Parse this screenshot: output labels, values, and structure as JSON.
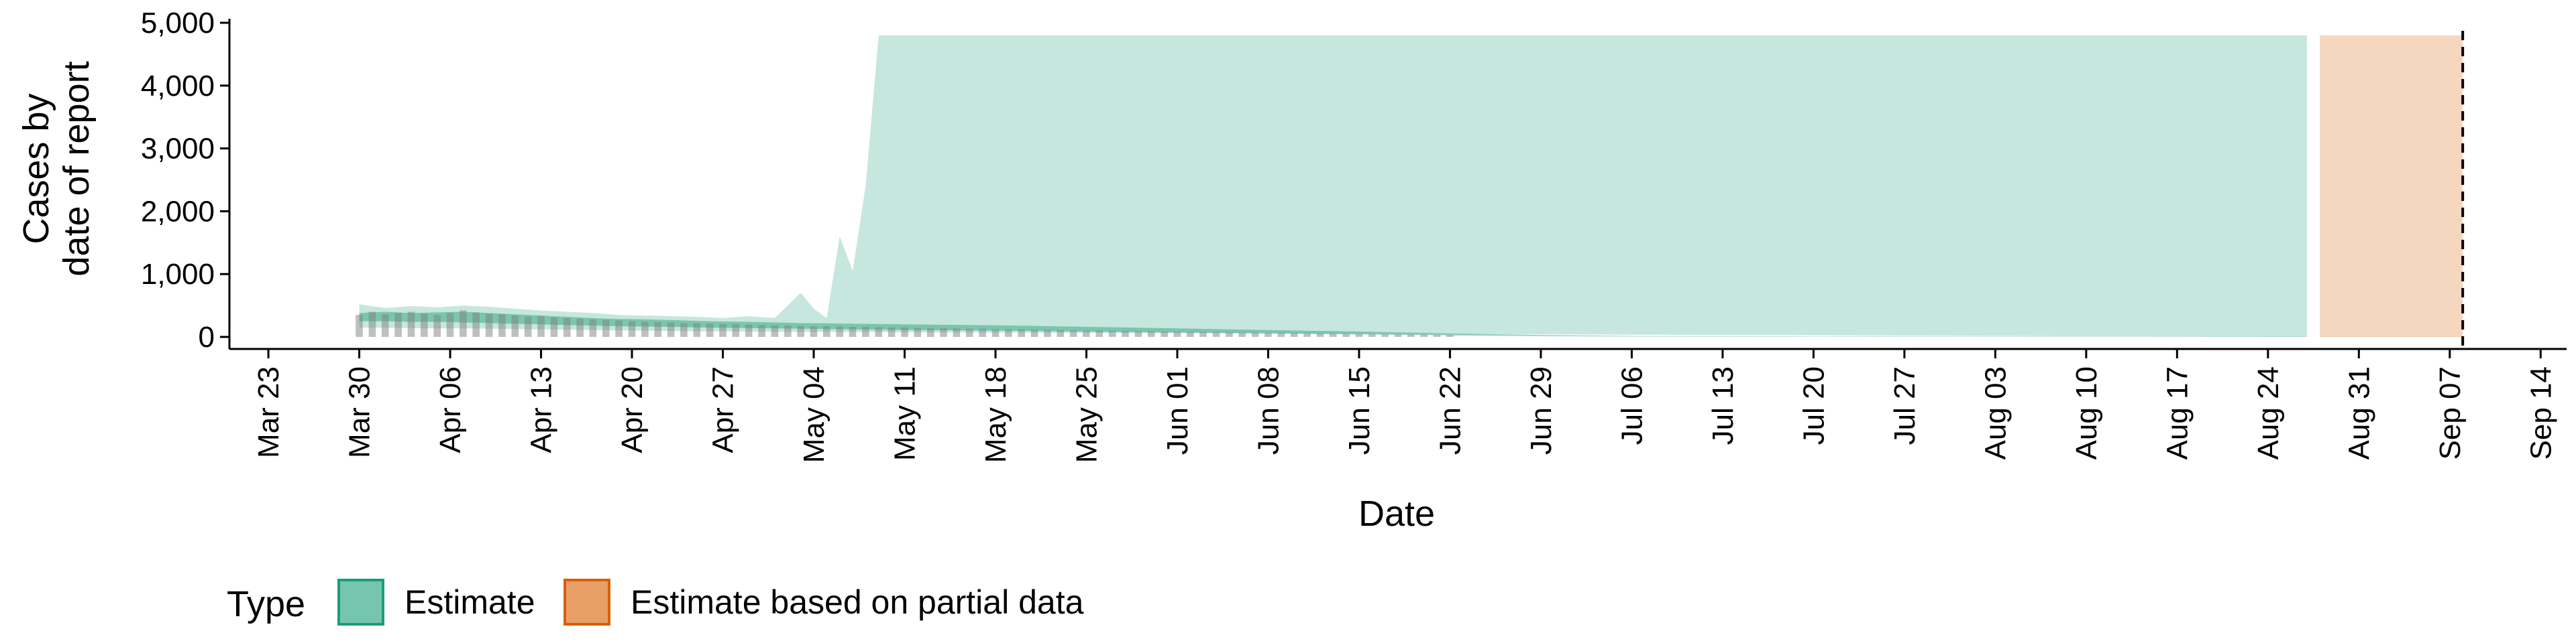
{
  "chart_data": {
    "type": "area",
    "title": "",
    "xlabel": "Date",
    "ylabel_lines": [
      "Cases by",
      "date of report"
    ],
    "x_range": [
      "2020-03-20",
      "2020-09-16"
    ],
    "ylim": [
      0,
      5000
    ],
    "y_ticks": [
      0,
      1000,
      2000,
      3000,
      4000,
      5000
    ],
    "y_tick_labels": [
      "0",
      "1,000",
      "2,000",
      "3,000",
      "4,000",
      "5,000"
    ],
    "x_ticks": [
      "2020-03-23",
      "2020-03-30",
      "2020-04-06",
      "2020-04-13",
      "2020-04-20",
      "2020-04-27",
      "2020-05-04",
      "2020-05-11",
      "2020-05-18",
      "2020-05-25",
      "2020-06-01",
      "2020-06-08",
      "2020-06-15",
      "2020-06-22",
      "2020-06-29",
      "2020-07-06",
      "2020-07-13",
      "2020-07-20",
      "2020-07-27",
      "2020-08-03",
      "2020-08-10",
      "2020-08-17",
      "2020-08-24",
      "2020-08-31",
      "2020-09-07",
      "2020-09-14"
    ],
    "x_tick_labels": [
      "Mar 23",
      "Mar 30",
      "Apr 06",
      "Apr 13",
      "Apr 20",
      "Apr 27",
      "May 04",
      "May 11",
      "May 18",
      "May 25",
      "Jun 01",
      "Jun 08",
      "Jun 15",
      "Jun 22",
      "Jun 29",
      "Jul 06",
      "Jul 13",
      "Jul 20",
      "Jul 27",
      "Aug 03",
      "Aug 10",
      "Aug 17",
      "Aug 24",
      "Aug 31",
      "Sep 07",
      "Sep 14"
    ],
    "reference_line_date": "2020-09-08",
    "grid": false,
    "legend": {
      "title": "Type",
      "position": "bottom-left",
      "entries": [
        {
          "label": "Estimate",
          "color": "#1b9e77"
        },
        {
          "label": "Estimate based on partial data",
          "color": "#d95f02"
        }
      ]
    },
    "series": [
      {
        "name": "Estimate",
        "color": "#1b9e77",
        "outer_band": [
          [
            "2020-03-30",
            150,
            520
          ],
          [
            "2020-04-01",
            145,
            460
          ],
          [
            "2020-04-03",
            140,
            490
          ],
          [
            "2020-04-05",
            135,
            470
          ],
          [
            "2020-04-07",
            135,
            500
          ],
          [
            "2020-04-09",
            130,
            480
          ],
          [
            "2020-04-11",
            125,
            450
          ],
          [
            "2020-04-13",
            120,
            420
          ],
          [
            "2020-04-15",
            115,
            400
          ],
          [
            "2020-04-17",
            110,
            380
          ],
          [
            "2020-04-19",
            105,
            350
          ],
          [
            "2020-04-21",
            100,
            340
          ],
          [
            "2020-04-23",
            95,
            330
          ],
          [
            "2020-04-25",
            90,
            320
          ],
          [
            "2020-04-27",
            88,
            300
          ],
          [
            "2020-04-29",
            85,
            330
          ],
          [
            "2020-05-01",
            82,
            300
          ],
          [
            "2020-05-03",
            80,
            700
          ],
          [
            "2020-05-04",
            80,
            450
          ],
          [
            "2020-05-05",
            80,
            300
          ],
          [
            "2020-05-06",
            80,
            1600
          ],
          [
            "2020-05-07",
            78,
            1050
          ],
          [
            "2020-05-08",
            78,
            2400
          ],
          [
            "2020-05-09",
            76,
            4800
          ],
          [
            "2020-08-27",
            0,
            4800
          ]
        ],
        "inner_band": [
          [
            "2020-03-30",
            250,
            380
          ],
          [
            "2020-04-01",
            250,
            400
          ],
          [
            "2020-04-03",
            240,
            380
          ],
          [
            "2020-04-05",
            240,
            390
          ],
          [
            "2020-04-07",
            230,
            400
          ],
          [
            "2020-04-09",
            220,
            380
          ],
          [
            "2020-04-11",
            210,
            360
          ],
          [
            "2020-04-13",
            200,
            340
          ],
          [
            "2020-04-15",
            190,
            320
          ],
          [
            "2020-04-17",
            180,
            300
          ],
          [
            "2020-04-19",
            170,
            285
          ],
          [
            "2020-04-21",
            165,
            280
          ],
          [
            "2020-04-23",
            160,
            270
          ],
          [
            "2020-04-25",
            150,
            255
          ],
          [
            "2020-04-27",
            145,
            245
          ],
          [
            "2020-04-29",
            140,
            240
          ],
          [
            "2020-05-01",
            135,
            230
          ],
          [
            "2020-05-03",
            130,
            220
          ],
          [
            "2020-05-05",
            125,
            215
          ],
          [
            "2020-05-07",
            120,
            210
          ],
          [
            "2020-05-11",
            110,
            200
          ],
          [
            "2020-05-18",
            100,
            185
          ],
          [
            "2020-05-25",
            85,
            160
          ],
          [
            "2020-06-01",
            70,
            135
          ],
          [
            "2020-06-08",
            55,
            110
          ],
          [
            "2020-06-15",
            40,
            85
          ],
          [
            "2020-06-22",
            25,
            55
          ],
          [
            "2020-06-29",
            12,
            30
          ],
          [
            "2020-07-06",
            5,
            15
          ],
          [
            "2020-07-20",
            2,
            8
          ],
          [
            "2020-08-27",
            0,
            3
          ]
        ]
      },
      {
        "name": "Estimate based on partial data",
        "color": "#d95f02",
        "outer_band": [
          [
            "2020-08-28",
            0,
            4800
          ],
          [
            "2020-09-08",
            0,
            4800
          ]
        ],
        "inner_band": [
          [
            "2020-08-28",
            0,
            3
          ],
          [
            "2020-09-08",
            0,
            3
          ]
        ]
      }
    ],
    "observed_bars": [
      [
        "2020-03-30",
        350
      ],
      [
        "2020-03-31",
        400
      ],
      [
        "2020-04-01",
        360
      ],
      [
        "2020-04-02",
        380
      ],
      [
        "2020-04-03",
        400
      ],
      [
        "2020-04-04",
        370
      ],
      [
        "2020-04-05",
        350
      ],
      [
        "2020-04-06",
        380
      ],
      [
        "2020-04-07",
        420
      ],
      [
        "2020-04-08",
        390
      ],
      [
        "2020-04-09",
        370
      ],
      [
        "2020-04-10",
        360
      ],
      [
        "2020-04-11",
        340
      ],
      [
        "2020-04-12",
        320
      ],
      [
        "2020-04-13",
        330
      ],
      [
        "2020-04-14",
        310
      ],
      [
        "2020-04-15",
        300
      ],
      [
        "2020-04-16",
        290
      ],
      [
        "2020-04-17",
        280
      ],
      [
        "2020-04-18",
        270
      ],
      [
        "2020-04-19",
        260
      ],
      [
        "2020-04-20",
        250
      ],
      [
        "2020-04-21",
        240
      ],
      [
        "2020-04-22",
        235
      ],
      [
        "2020-04-23",
        230
      ],
      [
        "2020-04-24",
        220
      ],
      [
        "2020-04-25",
        215
      ],
      [
        "2020-04-26",
        210
      ],
      [
        "2020-04-27",
        205
      ],
      [
        "2020-04-28",
        200
      ],
      [
        "2020-04-29",
        195
      ],
      [
        "2020-04-30",
        190
      ],
      [
        "2020-05-01",
        185
      ],
      [
        "2020-05-02",
        180
      ],
      [
        "2020-05-03",
        175
      ],
      [
        "2020-05-04",
        170
      ],
      [
        "2020-05-05",
        170
      ],
      [
        "2020-05-06",
        165
      ],
      [
        "2020-05-07",
        160
      ],
      [
        "2020-05-08",
        160
      ],
      [
        "2020-05-09",
        155
      ],
      [
        "2020-05-10",
        150
      ],
      [
        "2020-05-11",
        150
      ],
      [
        "2020-05-12",
        145
      ],
      [
        "2020-05-13",
        140
      ],
      [
        "2020-05-14",
        140
      ],
      [
        "2020-05-15",
        135
      ],
      [
        "2020-05-16",
        130
      ],
      [
        "2020-05-17",
        130
      ],
      [
        "2020-05-18",
        125
      ],
      [
        "2020-05-19",
        120
      ],
      [
        "2020-05-20",
        120
      ],
      [
        "2020-05-21",
        115
      ],
      [
        "2020-05-22",
        110
      ],
      [
        "2020-05-23",
        110
      ],
      [
        "2020-05-24",
        105
      ],
      [
        "2020-05-25",
        100
      ],
      [
        "2020-05-26",
        100
      ],
      [
        "2020-05-27",
        95
      ],
      [
        "2020-05-28",
        95
      ],
      [
        "2020-05-29",
        90
      ],
      [
        "2020-05-30",
        88
      ],
      [
        "2020-05-31",
        85
      ],
      [
        "2020-06-01",
        82
      ],
      [
        "2020-06-02",
        80
      ],
      [
        "2020-06-03",
        78
      ],
      [
        "2020-06-04",
        75
      ],
      [
        "2020-06-05",
        72
      ],
      [
        "2020-06-06",
        70
      ],
      [
        "2020-06-07",
        68
      ],
      [
        "2020-06-08",
        65
      ],
      [
        "2020-06-09",
        62
      ],
      [
        "2020-06-10",
        60
      ],
      [
        "2020-06-11",
        58
      ],
      [
        "2020-06-12",
        55
      ],
      [
        "2020-06-13",
        52
      ],
      [
        "2020-06-14",
        50
      ],
      [
        "2020-06-15",
        48
      ],
      [
        "2020-06-16",
        45
      ],
      [
        "2020-06-17",
        42
      ],
      [
        "2020-06-18",
        40
      ],
      [
        "2020-06-19",
        38
      ],
      [
        "2020-06-20",
        35
      ],
      [
        "2020-06-21",
        32
      ],
      [
        "2020-06-22",
        30
      ]
    ]
  }
}
